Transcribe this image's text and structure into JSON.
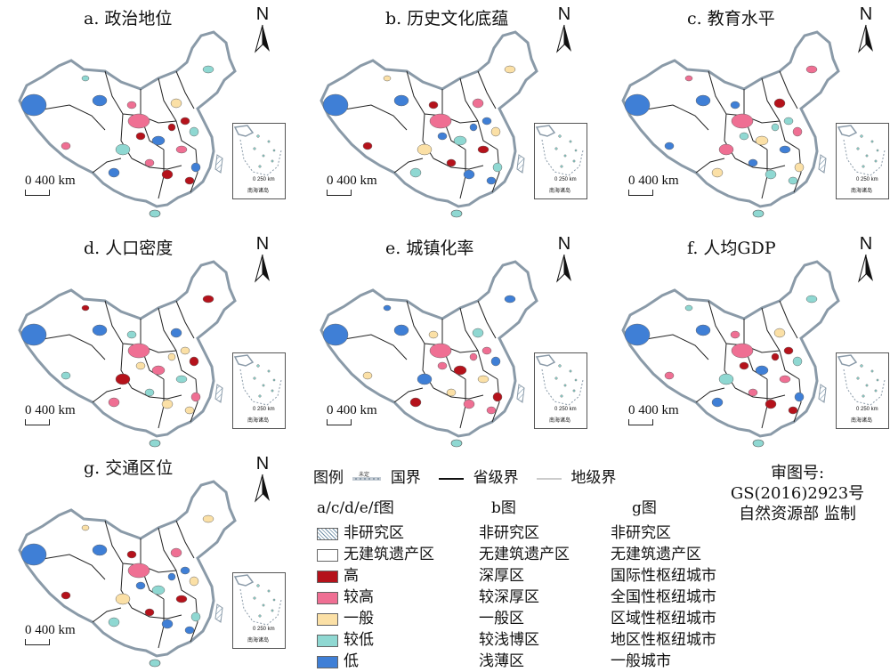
{
  "panels": [
    {
      "id": "a",
      "title": "a. 政治地位",
      "scale": "0 400 km"
    },
    {
      "id": "b",
      "title": "b. 历史文化底蕴",
      "scale": "0 400 km"
    },
    {
      "id": "c",
      "title": "c. 教育水平",
      "scale": "0 400 km"
    },
    {
      "id": "d",
      "title": "d. 人口密度",
      "scale": "0 400 km"
    },
    {
      "id": "e",
      "title": "e. 城镇化率",
      "scale": "0 400 km"
    },
    {
      "id": "f",
      "title": "f. 人均GDP",
      "scale": "0 400 km"
    },
    {
      "id": "g",
      "title": "g. 交通区位",
      "scale": "0 400 km"
    }
  ],
  "north_label": "N",
  "inset": {
    "scale": "0 250 km",
    "name": "南海诸岛"
  },
  "legend": {
    "title": "图例",
    "boundaries": {
      "undetermined": "未定",
      "national": "国界",
      "provincial": "省级界",
      "prefecture": "地级界"
    },
    "headers": {
      "acdef": "a/c/d/e/f图",
      "b": "b图",
      "g": "g图"
    },
    "rows": [
      {
        "color": "hatch",
        "acdef": "非研究区",
        "b": "非研究区",
        "g": "非研究区"
      },
      {
        "color": "#ffffff",
        "acdef": "无建筑遗产区",
        "b": "无建筑遗产区",
        "g": "无建筑遗产区"
      },
      {
        "color": "#b5121b",
        "acdef": "高",
        "b": "深厚区",
        "g": "国际性枢纽城市"
      },
      {
        "color": "#ef6f93",
        "acdef": "较高",
        "b": "较深厚区",
        "g": "全国性枢纽城市"
      },
      {
        "color": "#fbe0a6",
        "acdef": "一般",
        "b": "一般区",
        "g": "区域性枢纽城市"
      },
      {
        "color": "#8fd8d2",
        "acdef": "较低",
        "b": "较浅博区",
        "g": "地区性枢纽城市"
      },
      {
        "color": "#3f7fd6",
        "acdef": "低",
        "b": "浅薄区",
        "g": "一般城市"
      }
    ]
  },
  "review": {
    "line1": "审图号:",
    "line2": "GS(2016)2923号",
    "line3": "自然资源部 监制"
  }
}
